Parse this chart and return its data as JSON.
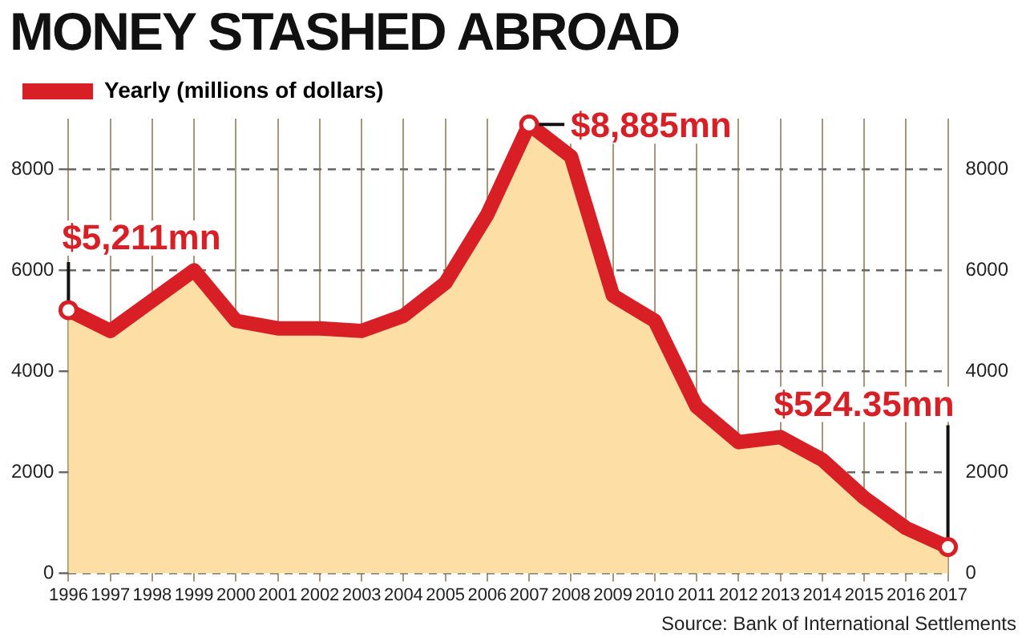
{
  "chart_data": {
    "type": "area",
    "title": "MONEY STASHED ABROAD",
    "categories": [
      "1996",
      "1997",
      "1998",
      "1999",
      "2000",
      "2001",
      "2002",
      "2003",
      "2004",
      "2005",
      "2006",
      "2007",
      "2008",
      "2009",
      "2010",
      "2011",
      "2012",
      "2013",
      "2014",
      "2015",
      "2016",
      "2017"
    ],
    "series": [
      {
        "name": "Yearly (millions of dollars)",
        "color": "#d91f26",
        "values": [
          5211,
          4800,
          5400,
          6000,
          5000,
          4850,
          4850,
          4800,
          5100,
          5750,
          7100,
          8885,
          8250,
          5500,
          5000,
          3300,
          2600,
          2700,
          2250,
          1500,
          900,
          524.35
        ]
      }
    ],
    "ylim": [
      0,
      9000
    ],
    "yticks": [
      0,
      2000,
      4000,
      6000,
      8000
    ],
    "y2lim": [
      0,
      9000
    ],
    "y2ticks": [
      0,
      2000,
      4000,
      6000,
      8000
    ],
    "grid": true,
    "legend": "top left",
    "marker": "none",
    "annotations": [
      {
        "text": "$5,211mn",
        "x": "1996",
        "y": 5211
      },
      {
        "text": "$8,885mn",
        "x": "2007",
        "y": 8885
      },
      {
        "text": "$524.35mn",
        "x": "2017",
        "y": 524.35
      },
      "Source: Bank of International Settlements"
    ]
  }
}
